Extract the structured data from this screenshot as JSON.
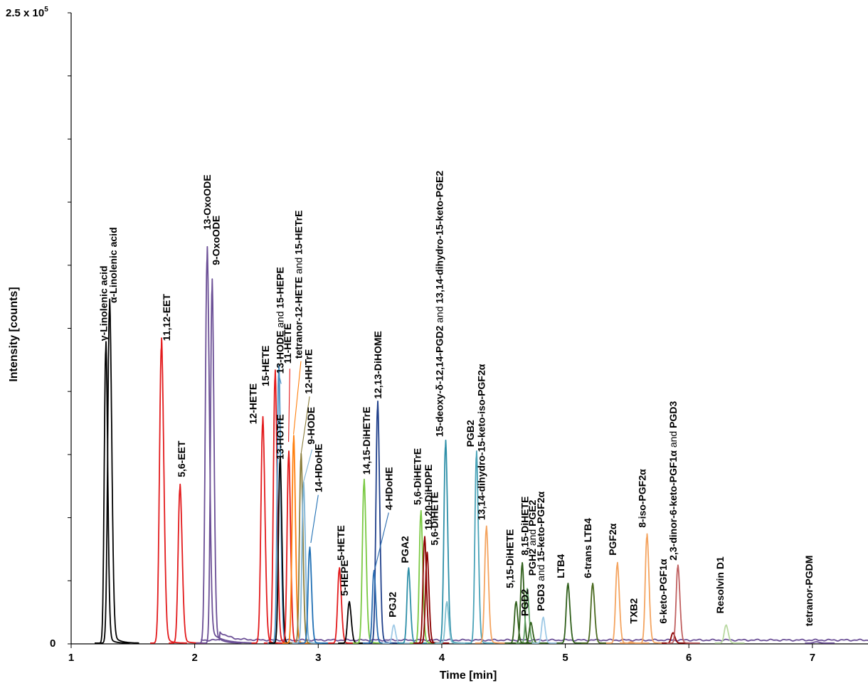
{
  "chart_data": {
    "type": "line",
    "title": "",
    "xlabel": "Time [min]",
    "ylabel": "Intensity [counts]",
    "ymax_label": "2.5 x 10",
    "ymax_exp": "5",
    "ymin_label": "0",
    "xlim": [
      1,
      7.45
    ],
    "ylim": [
      0,
      250000
    ],
    "x_ticks": [
      1,
      2,
      3,
      4,
      5,
      6,
      7
    ],
    "x_tick_labels": [
      "1",
      "2",
      "3",
      "4",
      "5",
      "6",
      "7"
    ],
    "y_ticks": [
      0,
      25000,
      50000,
      75000,
      100000,
      125000,
      150000,
      175000,
      200000,
      225000,
      250000
    ],
    "grid": false,
    "legend": "none",
    "baseline_trace": {
      "color": "#6b4f96",
      "x": [
        2.05,
        7.45
      ],
      "level": 1500
    },
    "peaks": [
      {
        "label": "γ-Linolenic acid",
        "rt": 1.28,
        "height": 116000,
        "width": 0.012,
        "tail": 0.035,
        "color": "#000000",
        "lx": 1.29,
        "ly": 120000
      },
      {
        "label": "α-Linolenic acid",
        "rt": 1.31,
        "height": 132000,
        "width": 0.014,
        "tail": 0.05,
        "color": "#000000",
        "lx": 1.37,
        "ly": 135000
      },
      {
        "label": "11,12-EET",
        "rt": 1.73,
        "height": 117000,
        "width": 0.015,
        "tail": 0.04,
        "color": "#e31a1c",
        "lx": 1.8,
        "ly": 120000
      },
      {
        "label": "5,6-EET",
        "rt": 1.88,
        "height": 61000,
        "width": 0.014,
        "tail": 0.04,
        "color": "#e31a1c",
        "lx": 1.92,
        "ly": 66000
      },
      {
        "label": "13-OxoODE",
        "rt": 2.1,
        "height": 152000,
        "width": 0.014,
        "tail": 0.09,
        "color": "#6b4f96",
        "lx": 2.13,
        "ly": 164000
      },
      {
        "label": "9-OxoODE",
        "rt": 2.14,
        "height": 140000,
        "width": 0.012,
        "tail": 0.05,
        "color": "#6b4f96",
        "lx": 2.2,
        "ly": 150000
      },
      {
        "label": "12-HETE",
        "rt": 2.55,
        "height": 87000,
        "width": 0.014,
        "tail": 0.03,
        "color": "#e31a1c",
        "lx": 2.5,
        "ly": 87000
      },
      {
        "label": "15-HETE",
        "rt": 2.65,
        "height": 105000,
        "width": 0.013,
        "tail": 0.03,
        "color": "#e31a1c",
        "lx": 2.6,
        "ly": 102000
      },
      {
        "label": "13-HODE",
        "label_suffix": "15-HEPE",
        "connector": "and",
        "rt": 2.68,
        "height": 107000,
        "width": 0.012,
        "tail": 0.02,
        "color": "#4a90c2",
        "lx": 2.72,
        "ly": 107000
      },
      {
        "label": "13-HOTrE",
        "rt": 2.69,
        "height": 72000,
        "width": 0.012,
        "tail": 0.02,
        "color": "#000000",
        "lx": 2.72,
        "ly": 73000
      },
      {
        "label": "11-HETE",
        "rt": 2.76,
        "height": 74000,
        "width": 0.012,
        "tail": 0.02,
        "color": "#e31a1c",
        "lx": 2.78,
        "ly": 111000
      },
      {
        "label": "tetranor-12-HETE",
        "label_suffix": "15-HETrE",
        "connector": "and",
        "rt": 2.8,
        "height": 80000,
        "width": 0.012,
        "tail": 0.02,
        "color": "#ff7f0e",
        "lx": 2.87,
        "ly": 113000
      },
      {
        "label": "12-HHTrE",
        "rt": 2.86,
        "height": 73000,
        "width": 0.012,
        "tail": 0.02,
        "color": "#8a7d3a",
        "lx": 2.95,
        "ly": 99000
      },
      {
        "label": "9-HODE",
        "rt": 2.88,
        "height": 62000,
        "width": 0.012,
        "tail": 0.02,
        "color": "#7fb3d5",
        "lx": 2.97,
        "ly": 79000
      },
      {
        "label": "14-HDoHE",
        "rt": 2.93,
        "height": 37000,
        "width": 0.012,
        "tail": 0.02,
        "color": "#1f6fb4",
        "lx": 3.03,
        "ly": 60000
      },
      {
        "label": "5-HETE",
        "rt": 3.17,
        "height": 29000,
        "width": 0.013,
        "tail": 0.02,
        "color": "#e31a1c",
        "lx": 3.21,
        "ly": 33000
      },
      {
        "label": "5-HEPE",
        "rt": 3.25,
        "height": 16000,
        "width": 0.013,
        "tail": 0.02,
        "color": "#000000",
        "lx": 3.24,
        "ly": 19000
      },
      {
        "label": "14,15-DiHETrE",
        "rt": 3.37,
        "height": 63000,
        "width": 0.013,
        "tail": 0.03,
        "color": "#7ac943",
        "lx": 3.42,
        "ly": 67000
      },
      {
        "label": "12,13-DiHOME",
        "rt": 3.48,
        "height": 93000,
        "width": 0.013,
        "tail": 0.03,
        "color": "#1f3f8a",
        "lx": 3.51,
        "ly": 97000
      },
      {
        "label": "4-HDoHE",
        "rt": 3.45,
        "height": 28000,
        "width": 0.012,
        "tail": 0.02,
        "color": "#2b6cb0",
        "lx": 3.6,
        "ly": 53000
      },
      {
        "label": "PGJ2",
        "rt": 3.61,
        "height": 7000,
        "width": 0.012,
        "tail": 0.02,
        "color": "#9ec9e6",
        "lx": 3.63,
        "ly": 10500
      },
      {
        "label": "PGA2",
        "rt": 3.73,
        "height": 29000,
        "width": 0.012,
        "tail": 0.02,
        "color": "#2e8fa8",
        "lx": 3.73,
        "ly": 32000
      },
      {
        "label": "5,6-DiHETrE",
        "rt": 3.83,
        "height": 51000,
        "width": 0.012,
        "tail": 0.03,
        "color": "#7ac943",
        "lx": 3.83,
        "ly": 55000
      },
      {
        "label": "19,20-DiHDPE",
        "rt": 3.86,
        "height": 41000,
        "width": 0.012,
        "tail": 0.03,
        "color": "#8b0000",
        "lx": 3.92,
        "ly": 45000
      },
      {
        "label": "5,6-DiHETE",
        "rt": 3.88,
        "height": 35000,
        "width": 0.012,
        "tail": 0.03,
        "color": "#8b0000",
        "lx": 3.97,
        "ly": 39000
      },
      {
        "label": "15-deoxy-δ-12,14-PGD2",
        "label_suffix": "13,14-dihydro-15-keto-PGE2",
        "connector": "and",
        "rt": 4.03,
        "height": 78000,
        "width": 0.013,
        "tail": 0.03,
        "color": "#2e8fa8",
        "lx": 4.01,
        "ly": 82000
      },
      {
        "label": "15-deoxy-δ-12,14-PGD2 (2)",
        "hide_label": true,
        "rt": 4.04,
        "height": 16000,
        "width": 0.012,
        "tail": 0.02,
        "color": "#7fbfcf",
        "lx": 0,
        "ly": 0
      },
      {
        "label": "PGB2",
        "rt": 4.28,
        "height": 74000,
        "width": 0.012,
        "tail": 0.02,
        "color": "#4aa3b8",
        "lx": 4.26,
        "ly": 78000
      },
      {
        "label": "13,14-dihydro-15-keto-iso-PGF2α",
        "rt": 4.36,
        "height": 45000,
        "width": 0.013,
        "tail": 0.03,
        "color": "#f4a460",
        "lx": 4.35,
        "ly": 49000
      },
      {
        "label": "5,15-DiHETE",
        "rt": 4.6,
        "height": 16000,
        "width": 0.012,
        "tail": 0.02,
        "color": "#2f5f1a",
        "lx": 4.58,
        "ly": 22000
      },
      {
        "label": "8,15-DiHETE",
        "rt": 4.65,
        "height": 31000,
        "width": 0.012,
        "tail": 0.02,
        "color": "#2f5f1a",
        "lx": 4.7,
        "ly": 35000
      },
      {
        "label": "PGH2",
        "label_suffix": "PGE2",
        "connector": "and",
        "rt": 4.69,
        "height": 21000,
        "width": 0.012,
        "tail": 0.02,
        "color": "#66a66a",
        "lx": 4.76,
        "ly": 27000
      },
      {
        "label": "PGD2",
        "rt": 4.72,
        "height": 8000,
        "width": 0.012,
        "tail": 0.02,
        "color": "#2f5f1a",
        "lx": 4.7,
        "ly": 11000
      },
      {
        "label": "PGD3",
        "label_suffix": "15-keto-PGF2α",
        "connector": "and",
        "rt": 4.82,
        "height": 10000,
        "width": 0.012,
        "tail": 0.02,
        "color": "#9ec9e6",
        "lx": 4.83,
        "ly": 13000
      },
      {
        "label": "LTB4",
        "rt": 5.02,
        "height": 23000,
        "width": 0.013,
        "tail": 0.02,
        "color": "#2f5f1a",
        "lx": 4.99,
        "ly": 26000
      },
      {
        "label": "6-trans LTB4",
        "rt": 5.22,
        "height": 23000,
        "width": 0.013,
        "tail": 0.02,
        "color": "#4a6a20",
        "lx": 5.21,
        "ly": 26000
      },
      {
        "label": "PGF2α",
        "rt": 5.42,
        "height": 31000,
        "width": 0.013,
        "tail": 0.02,
        "color": "#f4a460",
        "lx": 5.41,
        "ly": 35000
      },
      {
        "label": "TXB2",
        "rt": 5.53,
        "height": 500,
        "width": 0.012,
        "tail": 0.02,
        "color": "#f4a460",
        "lx": 5.58,
        "ly": 8000
      },
      {
        "label": "8-iso-PGF2α",
        "rt": 5.66,
        "height": 42000,
        "width": 0.013,
        "tail": 0.03,
        "color": "#f4a460",
        "lx": 5.65,
        "ly": 46000
      },
      {
        "label": "6-keto-PGF1α",
        "rt": 5.87,
        "height": 4000,
        "width": 0.013,
        "tail": 0.02,
        "color": "#8b0000",
        "lx": 5.82,
        "ly": 8000
      },
      {
        "label": "2,3-dinor-6-keto-PGF1α",
        "label_suffix": "PGD3",
        "connector": "and",
        "rt": 5.91,
        "height": 30000,
        "width": 0.013,
        "tail": 0.03,
        "color": "#c06060",
        "lx": 5.9,
        "ly": 33000
      },
      {
        "label": "Resolvin D1",
        "rt": 6.3,
        "height": 7000,
        "width": 0.014,
        "tail": 0.02,
        "color": "#b8d8a0",
        "lx": 6.28,
        "ly": 12000
      },
      {
        "label": "tetranor-PGDM",
        "rt": 7.03,
        "height": 500,
        "width": 0.02,
        "tail": 0.02,
        "color": "#6b4f96",
        "lx": 7.0,
        "ly": 7000
      }
    ],
    "leaders": [
      {
        "color": "#4a90c2",
        "x1": 2.7,
        "y1": 103000,
        "x2": 2.68,
        "y2": 107000
      },
      {
        "color": "#e31a1c",
        "x1": 2.76,
        "y1": 80000,
        "x2": 2.77,
        "y2": 109000
      },
      {
        "color": "#ff7f0e",
        "x1": 2.8,
        "y1": 83000,
        "x2": 2.86,
        "y2": 112000
      },
      {
        "color": "#8a7d3a",
        "x1": 2.86,
        "y1": 75000,
        "x2": 2.93,
        "y2": 98000
      },
      {
        "color": "#7fb3d5",
        "x1": 2.88,
        "y1": 64000,
        "x2": 2.95,
        "y2": 77000
      },
      {
        "color": "#1f6fb4",
        "x1": 2.94,
        "y1": 40000,
        "x2": 3.0,
        "y2": 59000
      },
      {
        "color": "#2b6cb0",
        "x1": 3.46,
        "y1": 30000,
        "x2": 3.57,
        "y2": 52000
      }
    ]
  }
}
